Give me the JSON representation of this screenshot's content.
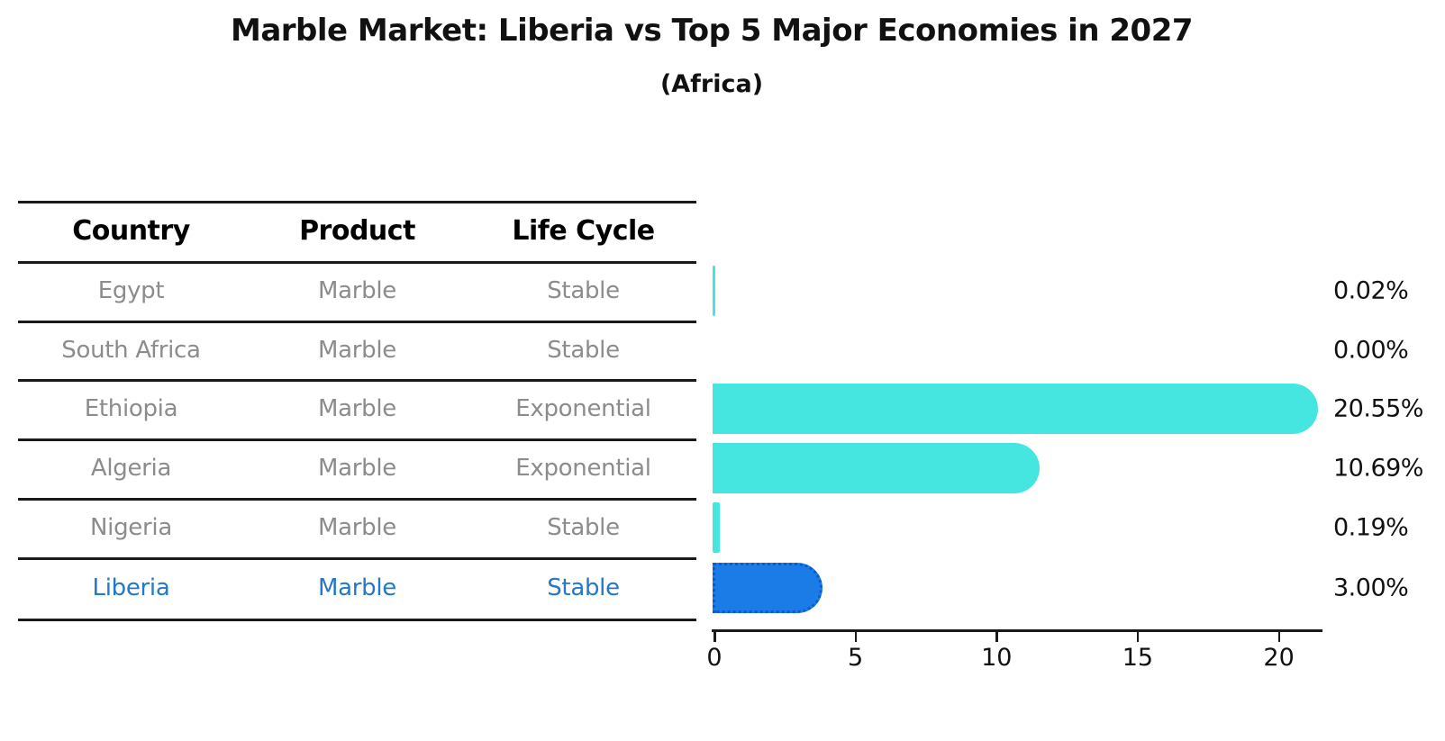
{
  "title": "Marble Market: Liberia vs Top 5 Major Economies in 2027",
  "subtitle": "(Africa)",
  "table": {
    "headers": [
      "Country",
      "Product",
      "Life Cycle"
    ],
    "rows": [
      {
        "country": "Egypt",
        "product": "Marble",
        "life_cycle": "Stable",
        "highlight": false
      },
      {
        "country": "South Africa",
        "product": "Marble",
        "life_cycle": "Stable",
        "highlight": false
      },
      {
        "country": "Ethiopia",
        "product": "Marble",
        "life_cycle": "Exponential",
        "highlight": false
      },
      {
        "country": "Algeria",
        "product": "Marble",
        "life_cycle": "Exponential",
        "highlight": false
      },
      {
        "country": "Nigeria",
        "product": "Marble",
        "life_cycle": "Stable",
        "highlight": false
      },
      {
        "country": "Liberia",
        "product": "Marble",
        "life_cycle": "Stable",
        "highlight": true
      }
    ]
  },
  "chart_data": {
    "type": "bar",
    "orientation": "horizontal",
    "title": "Marble Market: Liberia vs Top 5 Major Economies in 2027",
    "subtitle": "(Africa)",
    "categories": [
      "Egypt",
      "South Africa",
      "Ethiopia",
      "Algeria",
      "Nigeria",
      "Liberia"
    ],
    "values": [
      0.02,
      0.0,
      20.55,
      10.69,
      0.19,
      3.0
    ],
    "value_labels": [
      "0.02%",
      "0.00%",
      "20.55%",
      "10.69%",
      "0.19%",
      "3.00%"
    ],
    "x_ticks": [
      0,
      5,
      10,
      15,
      20
    ],
    "xlim": [
      0,
      21.6
    ],
    "xlabel": "",
    "ylabel": "",
    "grid": false,
    "legend": false,
    "highlight_index": 5
  },
  "colors": {
    "bar_cyan": "#46e6e0",
    "bar_blue": "#1b7ce8",
    "bar_blue_border": "#0a5ad0",
    "highlight_text": "#2478c8",
    "row_text": "#8c8c8c",
    "axis_black": "#1a1a1a"
  }
}
